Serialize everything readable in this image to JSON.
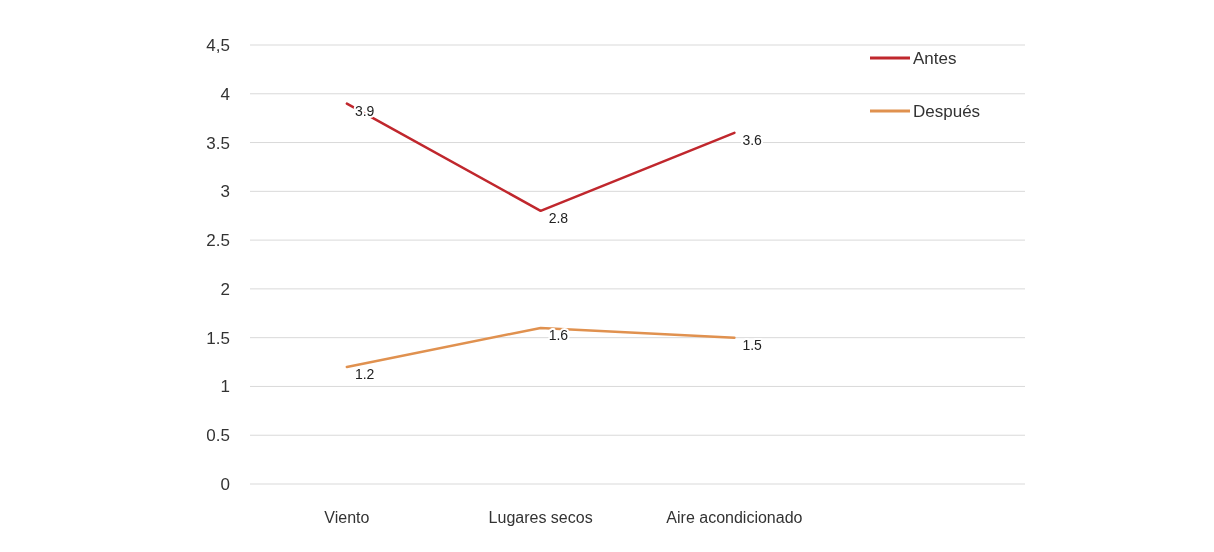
{
  "chart_data": {
    "type": "line",
    "categories": [
      "Viento",
      "Lugares secos",
      "Aire acondicionado",
      null
    ],
    "series": [
      {
        "name": "Antes",
        "color": "#c0272d",
        "values": [
          3.9,
          2.8,
          3.6,
          null
        ]
      },
      {
        "name": "Después",
        "color": "#e0914f",
        "values": [
          1.2,
          1.6,
          1.5,
          null
        ]
      }
    ],
    "ylim": [
      0,
      4.5
    ],
    "yticks": [
      0,
      0.5,
      1,
      1.5,
      2,
      2.5,
      3,
      3.5,
      4,
      {
        "value": 4.5,
        "label": "4,5"
      }
    ],
    "grid": "y",
    "legend": "top right",
    "data_labels": true,
    "marker": "none",
    "line_style": "solid"
  }
}
